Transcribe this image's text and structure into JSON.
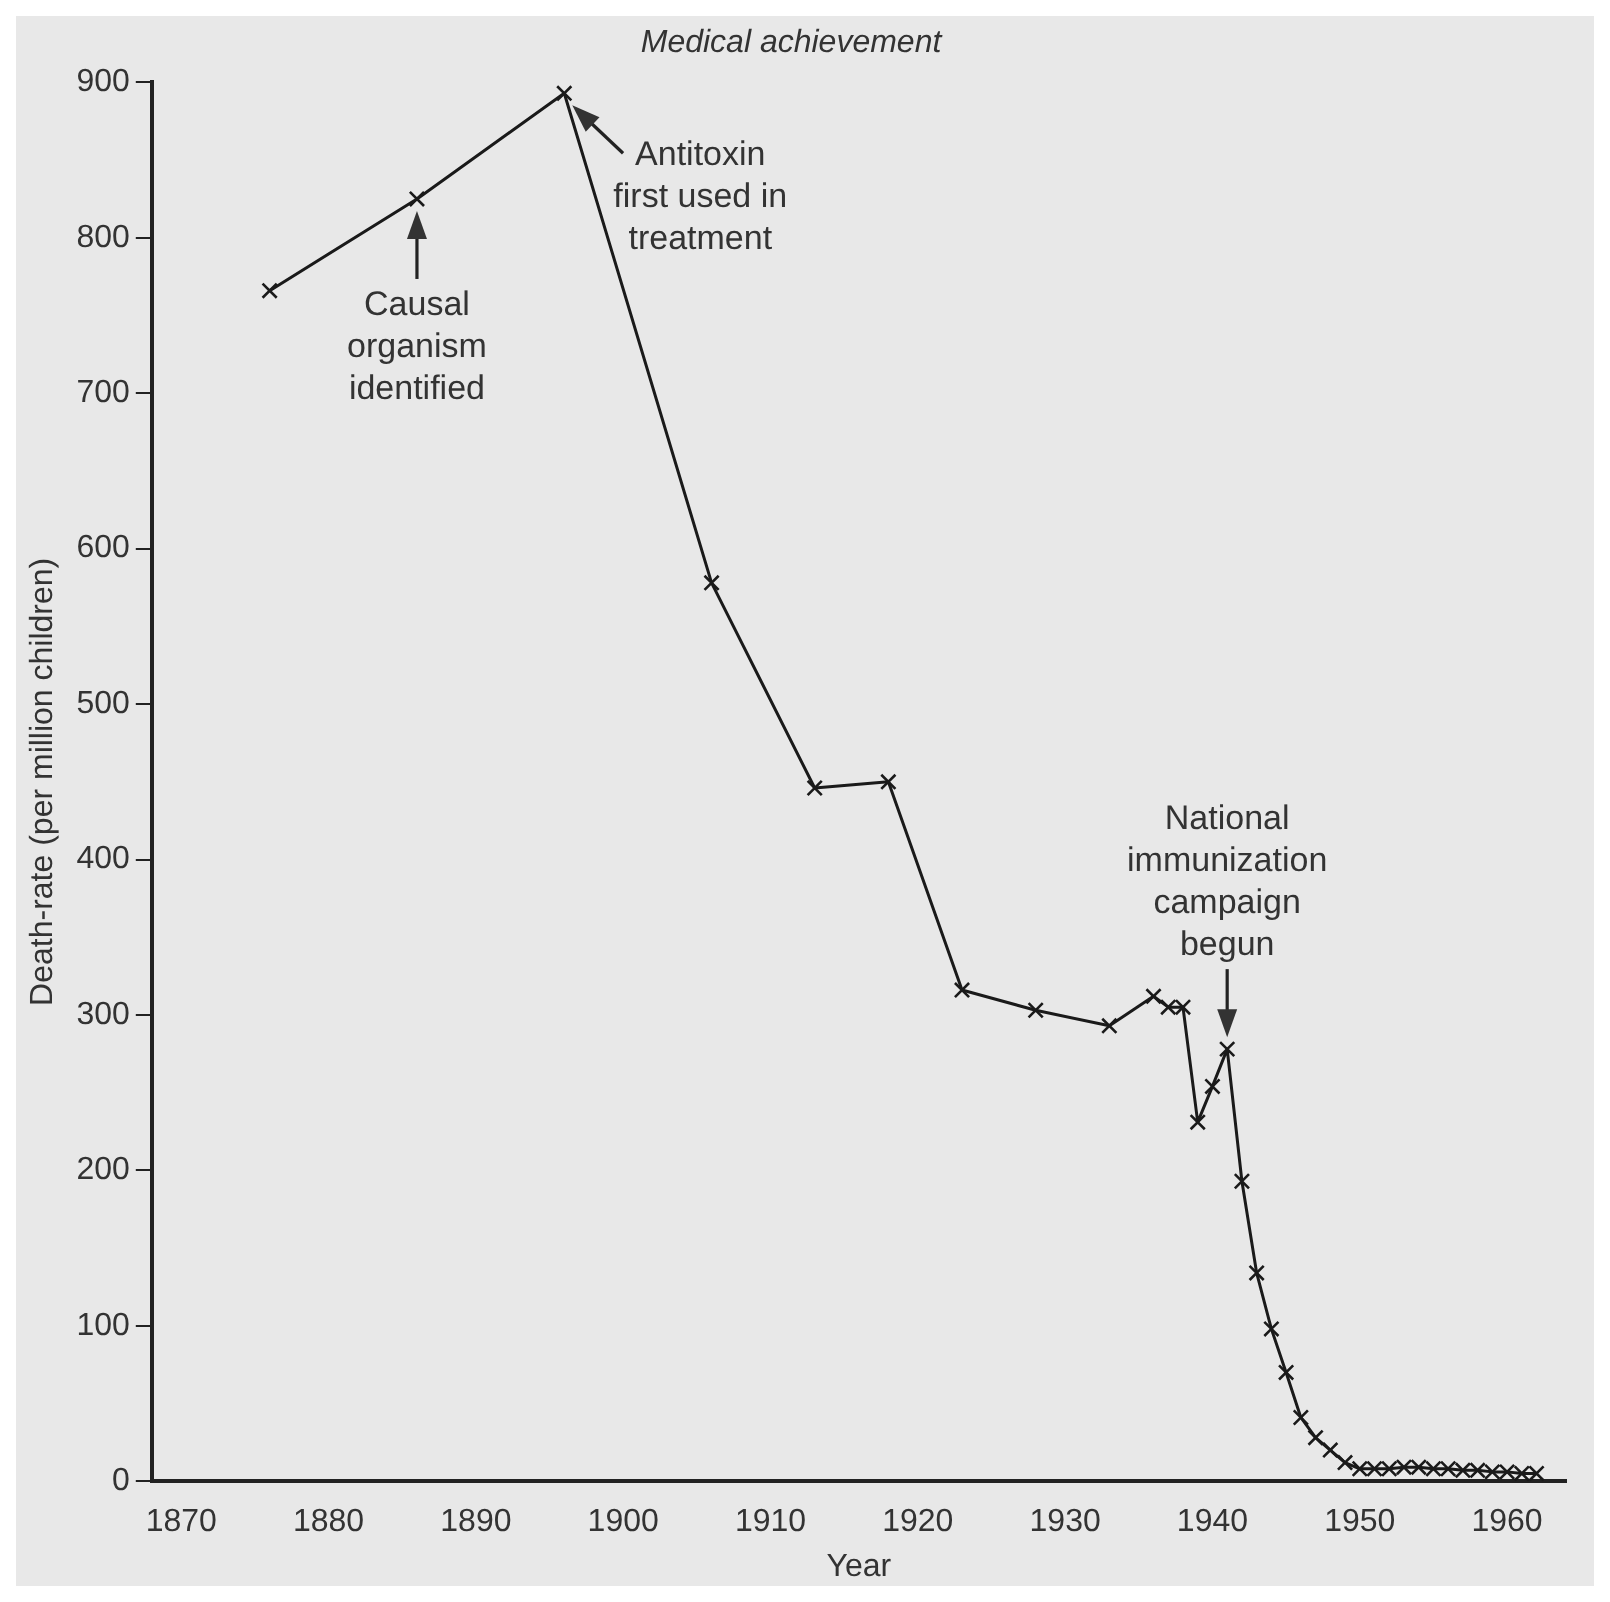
{
  "chart_data": {
    "type": "line",
    "title": "Medical achievement",
    "xlabel": "Year",
    "ylabel": "Death-rate (per million children)",
    "x": [
      1876,
      1886,
      1896,
      1906,
      1913,
      1918,
      1923,
      1928,
      1933,
      1936,
      1937,
      1938,
      1939,
      1940,
      1941,
      1942,
      1943,
      1944,
      1945,
      1946,
      1947,
      1948,
      1949,
      1950,
      1951,
      1952,
      1953,
      1954,
      1955,
      1956,
      1957,
      1958,
      1959,
      1960,
      1961,
      1962
    ],
    "series": [
      {
        "color": "#1a1a1a",
        "values": [
          766,
          825,
          893,
          578,
          446,
          450,
          316,
          303,
          293,
          312,
          305,
          305,
          231,
          254,
          278,
          193,
          134,
          98,
          70,
          41,
          28,
          20,
          12,
          8,
          8,
          8,
          9,
          9,
          8,
          8,
          7,
          7,
          6,
          6,
          5,
          5
        ]
      }
    ],
    "annotations": [
      {
        "text": "Causal\norganism\nidentified",
        "x": 1886,
        "y": 825
      },
      {
        "text": "Antitoxin\nfirst used in\ntreatment",
        "x": 1896,
        "y": 893
      },
      {
        "text": "National\nimmunization\ncampaign\nbegun",
        "x": 1941,
        "y": 278
      }
    ],
    "xlim": [
      1868,
      1964
    ],
    "xticks": [
      1870,
      1880,
      1890,
      1900,
      1910,
      1920,
      1930,
      1940,
      1950,
      1960
    ],
    "ylim": [
      0,
      900
    ],
    "yticks": [
      0,
      100,
      200,
      300,
      400,
      500,
      600,
      700,
      800,
      900
    ],
    "grid": false,
    "legend": false,
    "marker": "cross",
    "line_style": "solid"
  }
}
